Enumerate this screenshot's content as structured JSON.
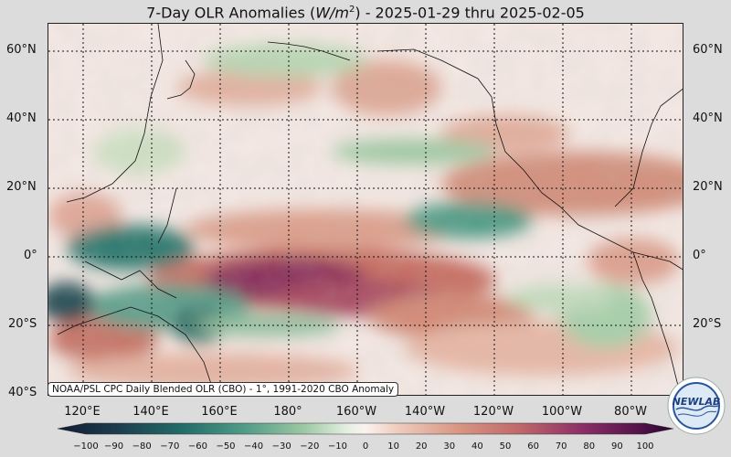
{
  "title": "7-Day OLR Anomalies (W/m²) - 2025-01-29 thru 2025-02-05",
  "title_parts": {
    "pre": "7-Day OLR Anomalies (",
    "unit_italic": "W/m",
    "sup": "2",
    "post": ") - 2025-01-29 thru 2025-02-05"
  },
  "map": {
    "lat_labels": [
      "60°N",
      "40°N",
      "20°N",
      "0°",
      "20°S",
      "40°S"
    ],
    "lon_labels": [
      "120°E",
      "140°E",
      "160°E",
      "180°",
      "160°W",
      "140°W",
      "120°W",
      "100°W",
      "80°W"
    ],
    "gridlines": "dotted",
    "colors": {
      "negative_strong": "#1d4e55",
      "negative": "#3f8f80",
      "negative_weak": "#a9cfa9",
      "neutral": "#f7ece8",
      "positive_weak": "#e8b4a0",
      "positive": "#cf7d6a",
      "positive_strong": "#7a1f55"
    }
  },
  "credit": "NOAA/PSL CPC Daily Blended OLR (CBO) - 1°, 1991-2020 CBO Anomaly",
  "colorbar": {
    "ticks": [
      "−100",
      "−90",
      "−80",
      "−70",
      "−60",
      "−50",
      "−40",
      "−30",
      "−20",
      "−10",
      "0",
      "10",
      "20",
      "30",
      "40",
      "50",
      "60",
      "70",
      "80",
      "90",
      "100"
    ],
    "min": -100,
    "max": 100
  },
  "logo": {
    "text": "NEWLAB",
    "icon": "noaa-psl-logo"
  }
}
